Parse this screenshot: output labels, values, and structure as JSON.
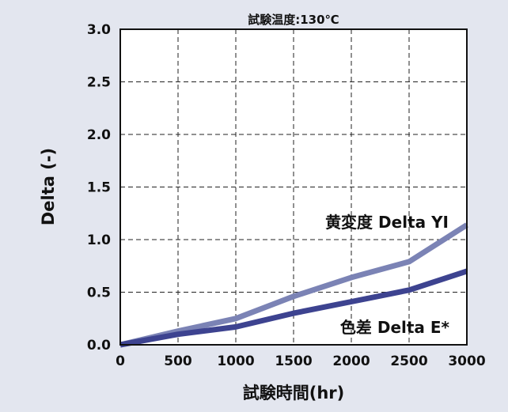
{
  "chart_data": {
    "type": "line",
    "title": "試験温度:130℃",
    "xlabel": "試験時間(hr)",
    "ylabel": "Delta (-)",
    "xlim": [
      0,
      3000
    ],
    "ylim": [
      0,
      3.0
    ],
    "xticks": [
      0,
      500,
      1000,
      1500,
      2000,
      2500,
      3000
    ],
    "yticks": [
      "0.0",
      "0.5",
      "1.0",
      "1.5",
      "2.0",
      "2.5",
      "3.0"
    ],
    "grid": true,
    "series": [
      {
        "name": "黄変度 Delta YI",
        "color": "#7b83b5",
        "x": [
          0,
          500,
          1000,
          1500,
          2000,
          2500,
          3000
        ],
        "y": [
          0,
          0.13,
          0.25,
          0.46,
          0.64,
          0.79,
          1.14
        ]
      },
      {
        "name": "色差 Delta E*",
        "color": "#3d4390",
        "x": [
          0,
          500,
          1000,
          1500,
          2000,
          2500,
          3000
        ],
        "y": [
          0,
          0.1,
          0.17,
          0.3,
          0.41,
          0.52,
          0.7
        ]
      }
    ]
  }
}
